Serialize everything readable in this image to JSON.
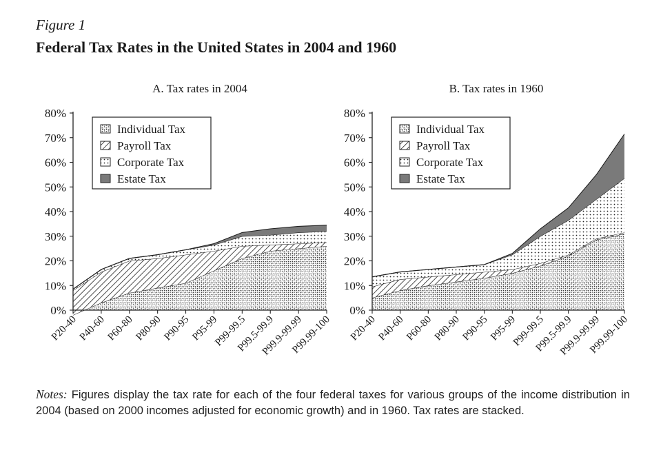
{
  "figure": {
    "label": "Figure 1",
    "title": "Federal Tax Rates in the United States in 2004 and 1960"
  },
  "notes": {
    "lead": "Notes:",
    "text": " Figures display the tax rate for each of the four federal taxes for various groups of the income distribution in 2004 (based on 2000 incomes adjusted for economic growth) and in 1960. Tax rates are stacked."
  },
  "chart_data": [
    {
      "type": "area",
      "stacked": true,
      "title": "A. Tax rates in 2004",
      "categories": [
        "P20-40",
        "P40-60",
        "P60-80",
        "P80-90",
        "P90-95",
        "P95-99",
        "P99-99.5",
        "P99.5-99.9",
        "P99.9-99.99",
        "P99.99-100"
      ],
      "ylim": [
        0,
        80
      ],
      "yticks": [
        "0%",
        "10%",
        "20%",
        "30%",
        "40%",
        "50%",
        "60%",
        "70%",
        "80%"
      ],
      "legend_position": "top-left",
      "series": [
        {
          "name": "Individual Tax",
          "values": [
            -2,
            3,
            7,
            9,
            11,
            16,
            21,
            24,
            25,
            26
          ],
          "pattern": "dots-dense"
        },
        {
          "name": "Payroll Tax",
          "values": [
            10,
            12.5,
            13,
            12,
            11.5,
            8,
            5,
            2.5,
            2,
            1.5
          ],
          "pattern": "hatch"
        },
        {
          "name": "Corporate Tax",
          "values": [
            0.5,
            1,
            1,
            1.5,
            2,
            2.5,
            4,
            4,
            4.5,
            4.5
          ],
          "pattern": "dots"
        },
        {
          "name": "Estate Tax",
          "values": [
            0,
            0,
            0,
            0,
            0,
            0.5,
            1.5,
            2.5,
            2.5,
            2.5
          ],
          "pattern": "solid-gray"
        }
      ]
    },
    {
      "type": "area",
      "stacked": true,
      "title": "B. Tax rates in 1960",
      "categories": [
        "P20-40",
        "P40-60",
        "P60-80",
        "P80-90",
        "P90-95",
        "P95-99",
        "P99-99.5",
        "P99.5-99.9",
        "P99.9-99.99",
        "P99.99-100"
      ],
      "ylim": [
        0,
        80
      ],
      "yticks": [
        "0%",
        "10%",
        "20%",
        "30%",
        "40%",
        "50%",
        "60%",
        "70%",
        "80%"
      ],
      "legend_position": "top-left",
      "series": [
        {
          "name": "Individual Tax",
          "values": [
            5,
            8,
            10,
            11.5,
            13,
            15,
            18,
            22,
            28.5,
            31
          ],
          "pattern": "dots-dense"
        },
        {
          "name": "Payroll Tax",
          "values": [
            4.5,
            4.5,
            3.5,
            3,
            2.5,
            1.5,
            1,
            0.5,
            0.5,
            0.5
          ],
          "pattern": "hatch"
        },
        {
          "name": "Corporate Tax",
          "values": [
            4,
            3,
            3,
            3,
            3,
            6,
            11,
            14,
            16,
            22
          ],
          "pattern": "dots"
        },
        {
          "name": "Estate Tax",
          "values": [
            0,
            0,
            0,
            0,
            0,
            0.5,
            3,
            5,
            10,
            18
          ],
          "pattern": "solid-gray"
        }
      ]
    }
  ]
}
